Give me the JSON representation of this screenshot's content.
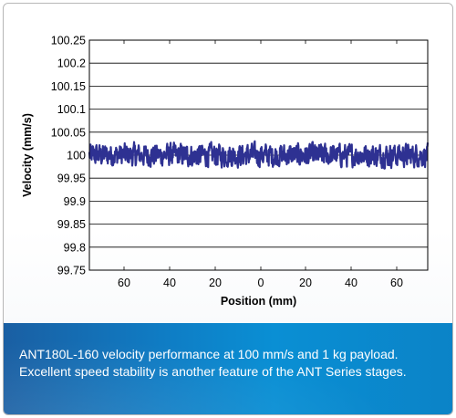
{
  "chart_data": {
    "type": "line",
    "title": "",
    "xlabel": "Position (mm)",
    "ylabel": "Velocity (mm/s)",
    "x_tick_labels": [
      "60",
      "40",
      "20",
      "0",
      "20",
      "40",
      "60"
    ],
    "y_tick_labels": [
      "100.25",
      "100.2",
      "100.15",
      "100.1",
      "100.05",
      "100",
      "99.95",
      "99.9",
      "99.85",
      "99.8",
      "99.75"
    ],
    "ylim": [
      99.75,
      100.25
    ],
    "grid": "horizontal",
    "series": [
      {
        "color": "#2e3192",
        "mean": 100.0,
        "min": 99.96,
        "max": 100.04,
        "description": "velocity trace oscillating around 100 mm/s, roughly ±0.03 mm/s across the full stroke"
      }
    ]
  },
  "caption": {
    "line1": "ANT180L-160 velocity performance at 100 mm/s and 1 kg payload.",
    "line2": "Excellent speed stability is another feature of the ANT Series stages."
  },
  "colors": {
    "trace": "#2e3192",
    "caption_band": "#0f7cc4"
  }
}
